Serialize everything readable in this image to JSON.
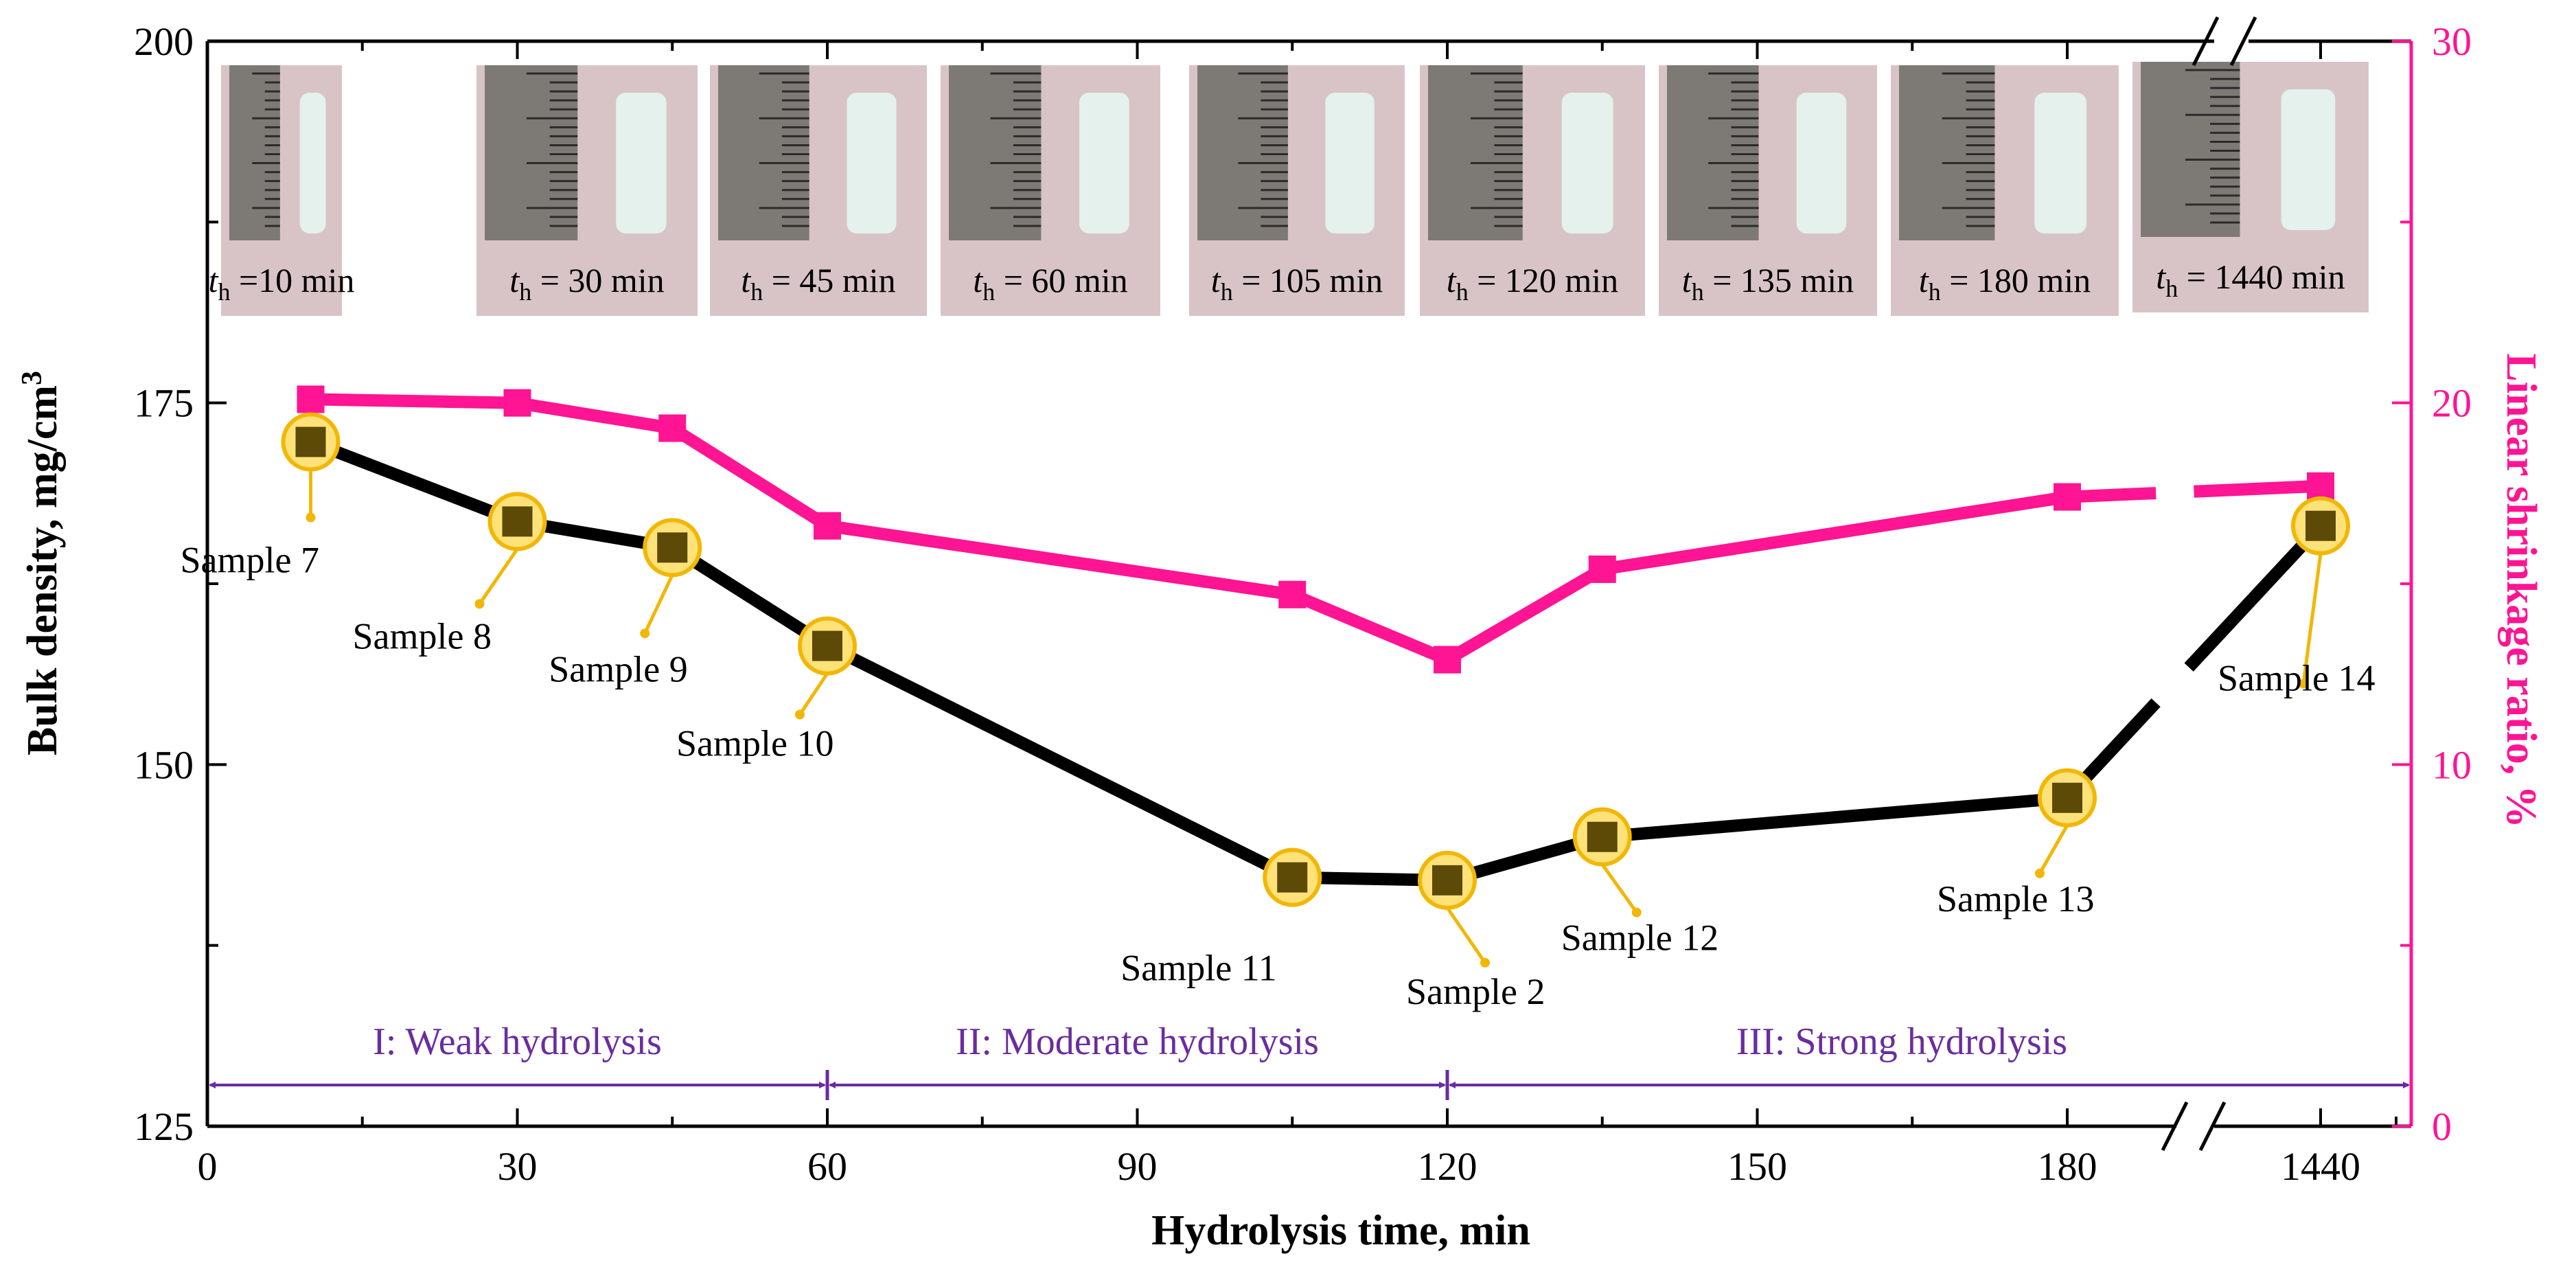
{
  "chart_data": {
    "type": "line",
    "xlabel": "Hydrolysis time, min",
    "ylabel_left": "Bulk density, mg/cm",
    "ylabel_left_superscript": "3",
    "ylabel_right": "Linear shrinkage ratio, %",
    "x_ticks": [
      "0",
      "30",
      "60",
      "90",
      "120",
      "150",
      "180",
      "1440"
    ],
    "x_broken_axis": true,
    "ylim_left": [
      125,
      200
    ],
    "y_ticks_left": [
      "125",
      "150",
      "175",
      "200"
    ],
    "ylim_right": [
      0,
      30
    ],
    "y_ticks_right": [
      "0",
      "10",
      "20",
      "30"
    ],
    "series": [
      {
        "name": "Bulk density",
        "axis": "left",
        "color": "#000000",
        "marker_color": "#5c4a06",
        "x": [
          10,
          30,
          45,
          60,
          105,
          120,
          135,
          180,
          1440
        ],
        "values": [
          172.3,
          166.8,
          165.0,
          158.2,
          142.2,
          142.0,
          145.0,
          147.7,
          166.5
        ]
      },
      {
        "name": "Linear shrinkage ratio",
        "axis": "right",
        "color": "#ff1493",
        "x": [
          10,
          30,
          45,
          60,
          105,
          120,
          135,
          180,
          1440
        ],
        "values": [
          20.1,
          20.0,
          19.3,
          16.6,
          14.7,
          12.9,
          15.4,
          17.4,
          17.7
        ]
      }
    ],
    "sample_labels": [
      "Sample 7",
      "Sample 8",
      "Sample 9",
      "Sample 10",
      "Sample 11",
      "Sample 2",
      "Sample 12",
      "Sample 13",
      "Sample 14"
    ],
    "regions": [
      {
        "label": "I: Weak hydrolysis",
        "from": 0,
        "to": 60
      },
      {
        "label": "II: Moderate hydrolysis",
        "from": 60,
        "to": 120
      },
      {
        "label": "III: Strong hydrolysis",
        "from": 120,
        "to": 1440
      }
    ],
    "photo_captions": [
      {
        "t": "t",
        "sub": "h",
        "rest": " =10 min"
      },
      {
        "t": "t",
        "sub": "h",
        "rest": " = 30 min"
      },
      {
        "t": "t",
        "sub": "h",
        "rest": " = 45 min"
      },
      {
        "t": "t",
        "sub": "h",
        "rest": " = 60 min"
      },
      {
        "t": "t",
        "sub": "h",
        "rest": " = 105 min"
      },
      {
        "t": "t",
        "sub": "h",
        "rest": " = 120 min"
      },
      {
        "t": "t",
        "sub": "h",
        "rest": " = 135 min"
      },
      {
        "t": "t",
        "sub": "h",
        "rest": " = 180 min"
      },
      {
        "t": "t",
        "sub": "h",
        "rest": " = 1440 min"
      }
    ],
    "colors": {
      "axis_right": "#ff1493",
      "highlight_fill": "#fde27a",
      "highlight_stroke": "#f2b705",
      "region_arrow": "#6a2ca0",
      "photo_bg": "#d8c4c6",
      "ruler": "#7d7a76",
      "sample_body": "#e4f1ec"
    }
  }
}
